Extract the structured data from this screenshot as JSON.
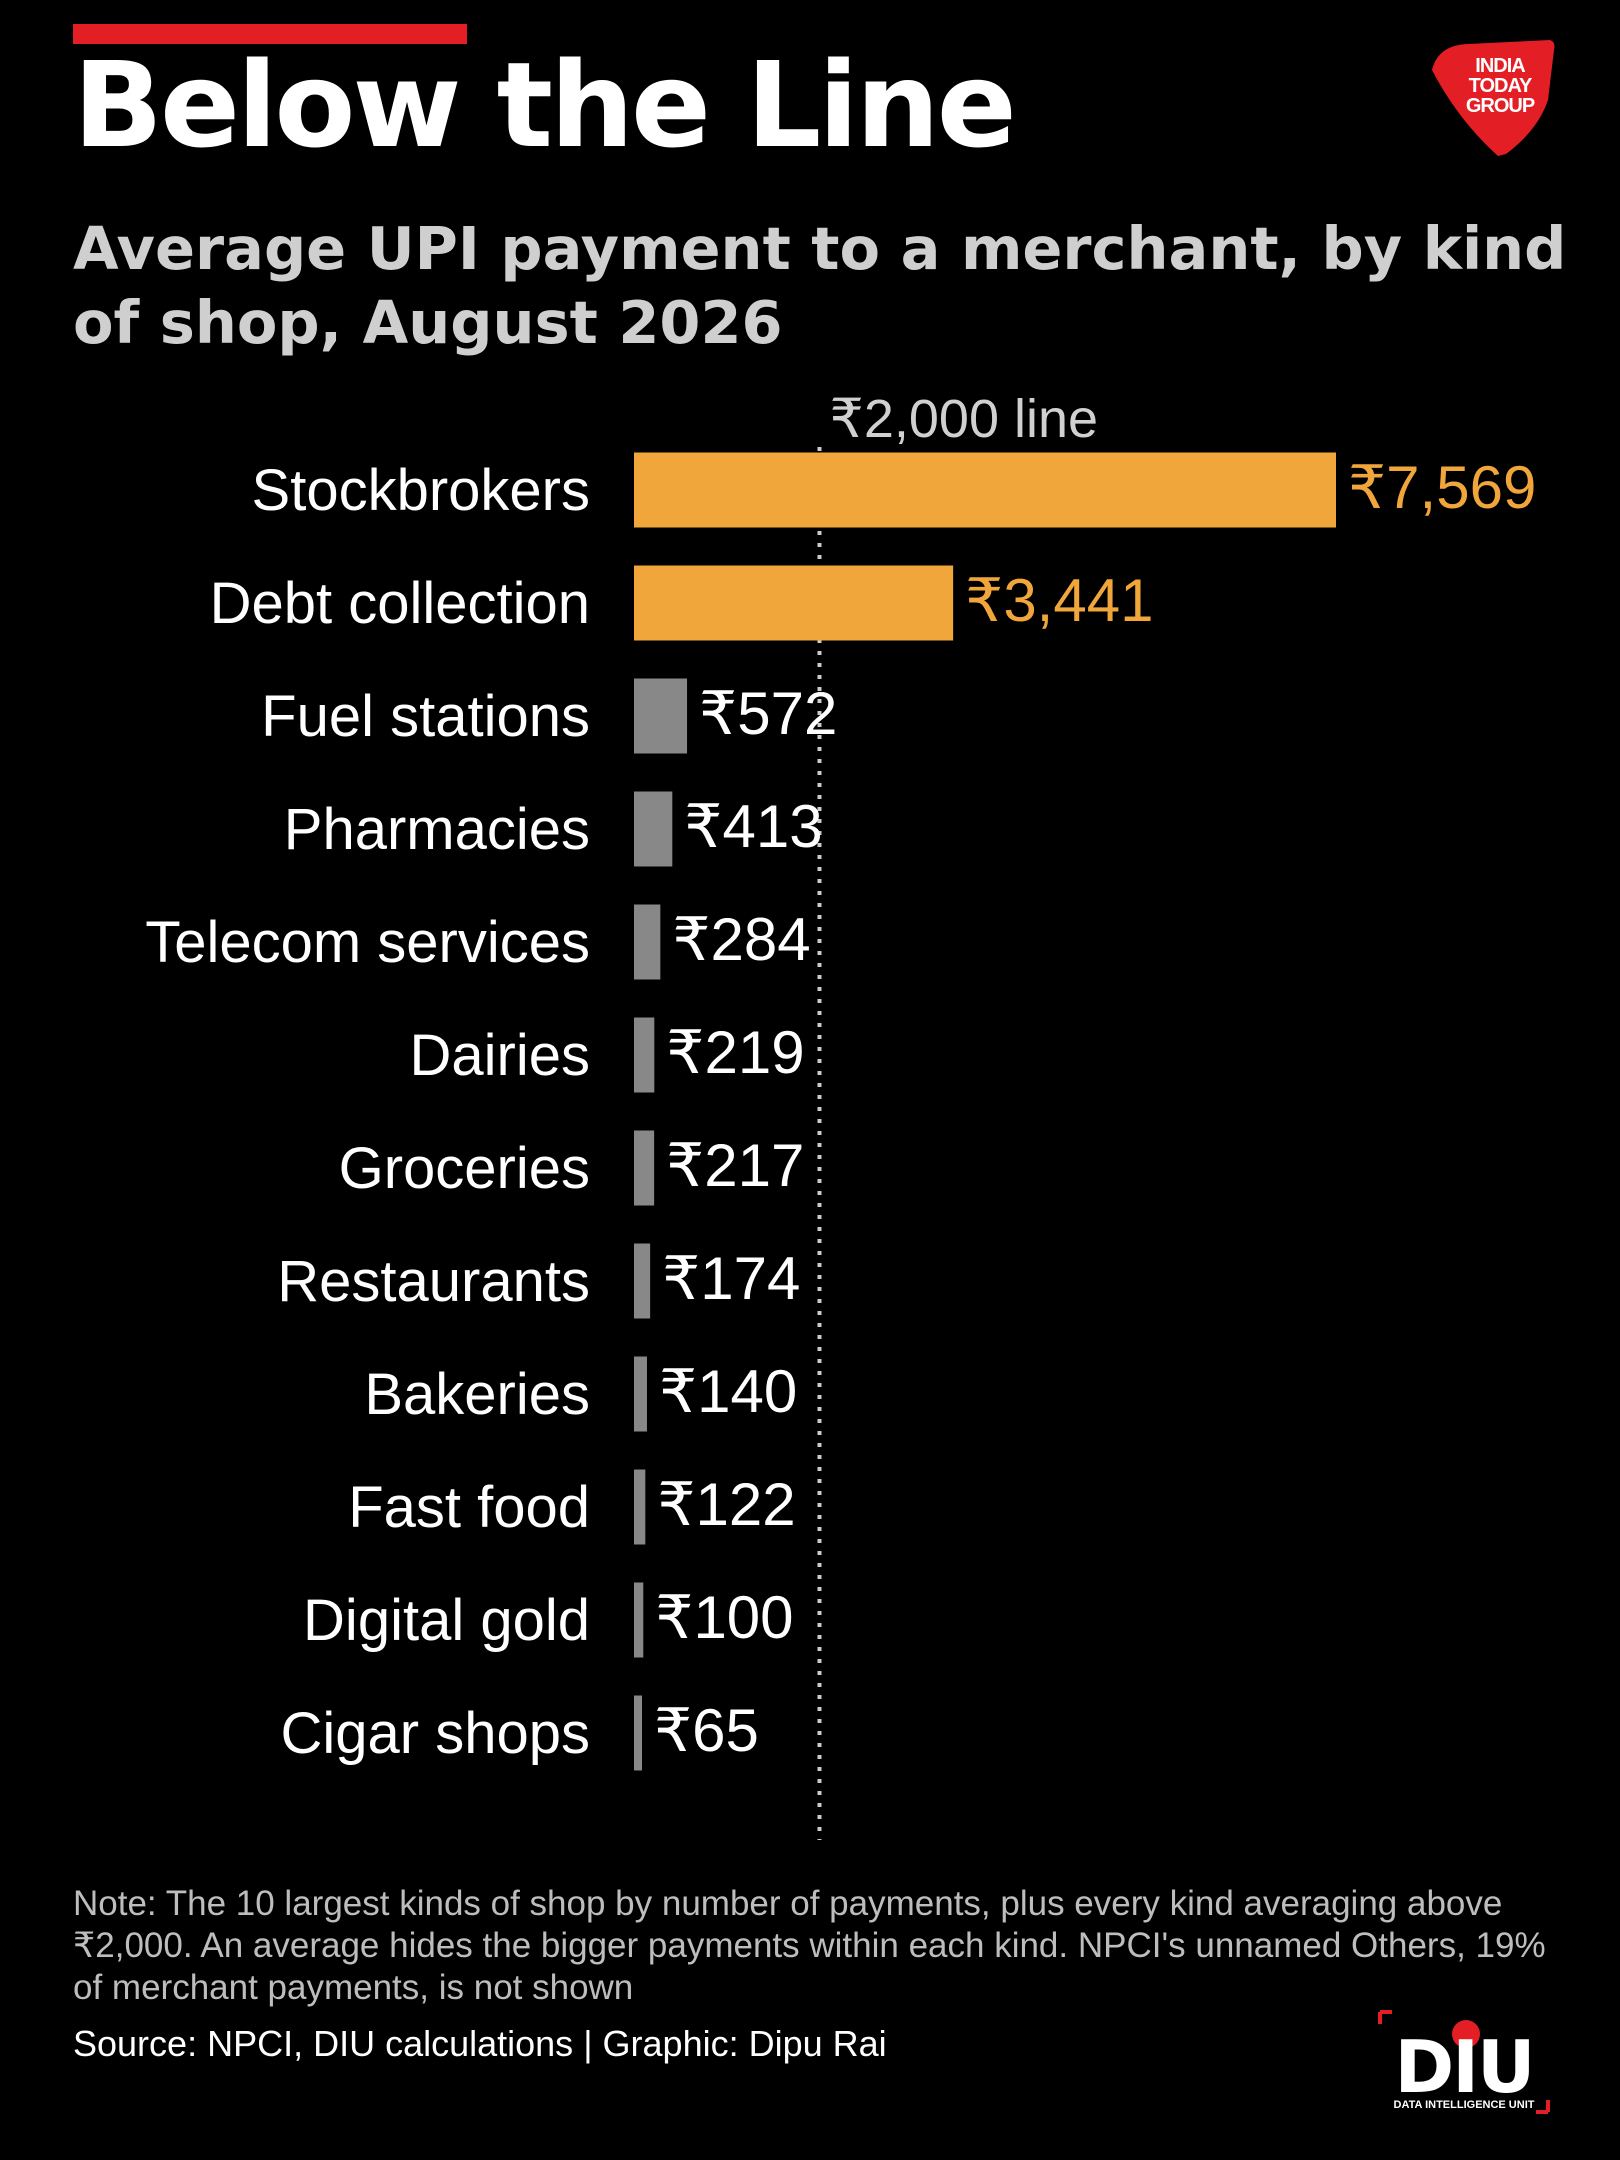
{
  "header": {
    "title": "Below the Line",
    "subtitle": "Average UPI payment to a merchant, by kind of shop, August 2026"
  },
  "logo": {
    "icon": "india-today-group-logo",
    "lines": [
      "INDIA",
      "TODAY",
      "GROUP"
    ],
    "color": "#e31e24"
  },
  "chart_data": {
    "type": "bar",
    "orientation": "horizontal",
    "categories": [
      "Stockbrokers",
      "Debt collection",
      "Fuel stations",
      "Pharmacies",
      "Telecom services",
      "Dairies",
      "Groceries",
      "Restaurants",
      "Bakeries",
      "Fast food",
      "Digital gold",
      "Cigar shops"
    ],
    "values": [
      7569,
      3441,
      572,
      413,
      284,
      219,
      217,
      174,
      140,
      122,
      100,
      65
    ],
    "value_labels": [
      "₹7,569",
      "₹3,441",
      "₹572",
      "₹413",
      "₹284",
      "₹219",
      "₹217",
      "₹174",
      "₹140",
      "₹122",
      "₹100",
      "₹65"
    ],
    "reference_line": {
      "value": 2000,
      "label": "₹2,000 line",
      "style": "dotted"
    },
    "colors": {
      "above_line": "#f0a63a",
      "below_line": "#888888",
      "label_below": "#ffffff",
      "reference": "#cccccc"
    },
    "xlim": [
      0,
      7569
    ],
    "title": "Below the Line",
    "xlabel": "",
    "ylabel": "",
    "grid": false,
    "legend": false
  },
  "footer": {
    "note": "Note: The 10 largest kinds of shop by number of payments, plus every kind averaging above ₹2,000. An average hides the bigger payments within each kind. NPCI's unnamed Others, 19% of merchant payments, is not shown",
    "source": "Source: NPCI, DIU calculations | Graphic: Dipu Rai"
  },
  "diu_logo": {
    "icon": "diu-logo",
    "text": "DIU",
    "caption": "DATA INTELLIGENCE UNIT"
  }
}
